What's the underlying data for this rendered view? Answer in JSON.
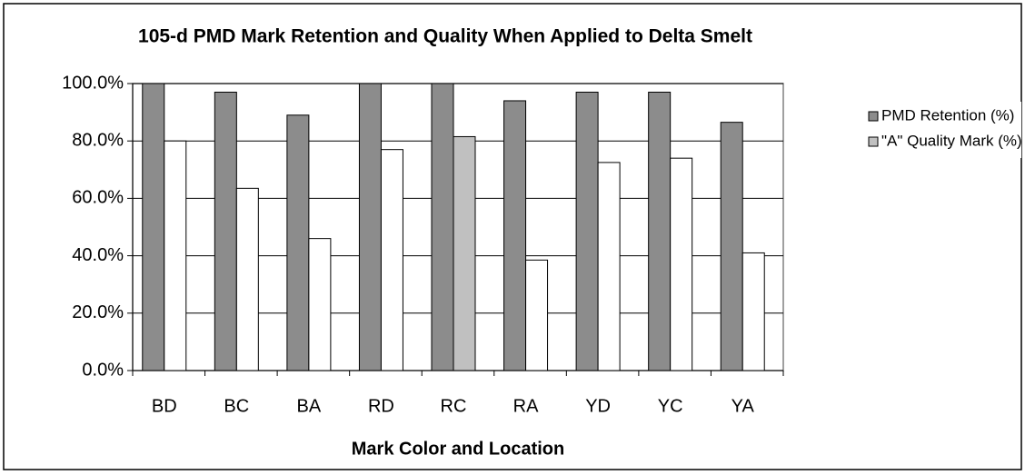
{
  "chart_data": {
    "type": "bar",
    "title": "105-d PMD Mark Retention and Quality When Applied to Delta Smelt",
    "x_label": "Mark Color and Location",
    "categories": [
      "BD",
      "BC",
      "BA",
      "RD",
      "RC",
      "RA",
      "YD",
      "YC",
      "YA"
    ],
    "series": [
      {
        "name": "PMD Retention (%)",
        "color": "#8c8c8c",
        "values": [
          100,
          97,
          89,
          100,
          100,
          94,
          97,
          97,
          86.5
        ]
      },
      {
        "name": "\"A\" Quality Mark (%)",
        "color": "#c0c0c0",
        "colors": [
          "#ffffff",
          "#ffffff",
          "#ffffff",
          "#ffffff",
          "#c0c0c0",
          "#ffffff",
          "#ffffff",
          "#ffffff",
          "#ffffff"
        ],
        "values": [
          80,
          63.5,
          46,
          77,
          81.5,
          38.5,
          72.5,
          74,
          41
        ]
      }
    ],
    "ylim": [
      0,
      100
    ],
    "yticks": [
      {
        "value": 0,
        "label": "0.0%"
      },
      {
        "value": 20,
        "label": "20.0%"
      },
      {
        "value": 40,
        "label": "40.0%"
      },
      {
        "value": 60,
        "label": "60.0%"
      },
      {
        "value": 80,
        "label": "80.0%"
      },
      {
        "value": 100,
        "label": "100.0%"
      }
    ],
    "grid": true,
    "legend": "right"
  }
}
